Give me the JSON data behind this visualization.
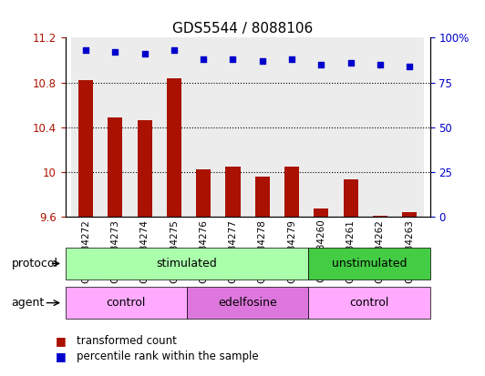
{
  "title": "GDS5544 / 8088106",
  "samples": [
    "GSM1084272",
    "GSM1084273",
    "GSM1084274",
    "GSM1084275",
    "GSM1084276",
    "GSM1084277",
    "GSM1084278",
    "GSM1084279",
    "GSM1084260",
    "GSM1084261",
    "GSM1084262",
    "GSM1084263"
  ],
  "transformed_count": [
    10.82,
    10.49,
    10.46,
    10.84,
    10.02,
    10.05,
    9.96,
    10.05,
    9.67,
    9.93,
    9.61,
    9.64
  ],
  "percentile_rank": [
    93,
    92,
    91,
    93,
    88,
    88,
    87,
    88,
    85,
    86,
    85,
    84
  ],
  "ylim_left": [
    9.6,
    11.2
  ],
  "ylim_right": [
    0,
    100
  ],
  "yticks_left": [
    9.6,
    10.0,
    10.4,
    10.8,
    11.2
  ],
  "yticks_right": [
    0,
    25,
    50,
    75,
    100
  ],
  "ytick_labels_left": [
    "9.6",
    "10",
    "10.4",
    "10.8",
    "11.2"
  ],
  "ytick_labels_right": [
    "0",
    "25",
    "50",
    "75",
    "100%"
  ],
  "bar_color": "#aa1100",
  "dot_color": "#0000cc",
  "protocol_groups": [
    {
      "label": "stimulated",
      "start": 0,
      "end": 7,
      "color": "#aaffaa"
    },
    {
      "label": "unstimulated",
      "start": 8,
      "end": 11,
      "color": "#44cc44"
    }
  ],
  "agent_groups": [
    {
      "label": "control",
      "start": 0,
      "end": 3,
      "color": "#ffaaff"
    },
    {
      "label": "edelfosine",
      "start": 4,
      "end": 7,
      "color": "#dd77dd"
    },
    {
      "label": "control",
      "start": 8,
      "end": 11,
      "color": "#ffaaff"
    }
  ],
  "legend_bar_label": "transformed count",
  "legend_dot_label": "percentile rank within the sample",
  "protocol_label": "protocol",
  "agent_label": "agent",
  "grid_lines_at": [
    10.0,
    10.4,
    10.8
  ],
  "title_fontsize": 11,
  "tick_fontsize": 8.5,
  "label_fontsize": 9
}
